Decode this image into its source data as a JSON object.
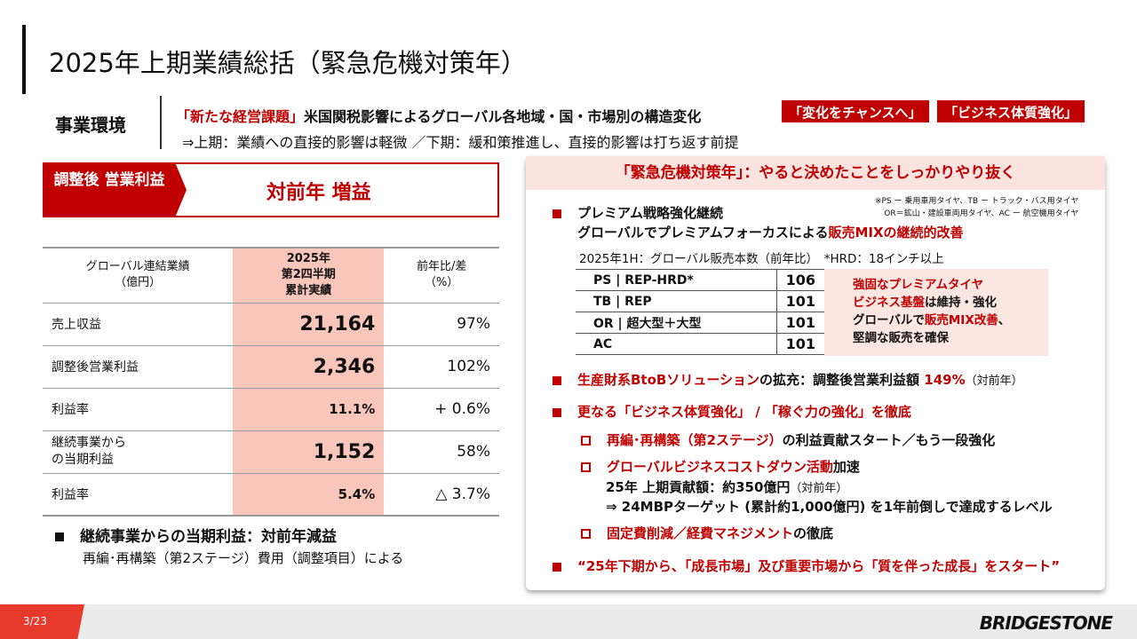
{
  "title": "2025年上期業績総括（緊急危機対策年）",
  "env": {
    "label": "事業環境",
    "line1_red": "「新たな経営課題」",
    "line1_black": "米国関税影響によるグローバル各地域・国・市場別の構造変化",
    "line2": "⇒上期：業績への直接的影響は軽微 ／下期：緩和策推進し、直接的影響は打ち返す前提",
    "tags": [
      "「変化をチャンスへ」",
      "「ビジネス体質強化」"
    ]
  },
  "summary": {
    "label": "調整後 営業利益",
    "result": "対前年 増益"
  },
  "fin_table": {
    "headers": [
      "グローバル連結業績\n（億円）",
      "2025年\n第2四半期\n累計実績",
      "前年比/差\n（%）"
    ],
    "rows": [
      [
        "売上収益",
        "21,164",
        "97%"
      ],
      [
        "調整後営業利益",
        "2,346",
        "102%"
      ],
      [
        "利益率",
        "11.1%",
        "+ 0.6%"
      ],
      [
        "継続事業から\nの当期利益",
        "1,152",
        "58%"
      ],
      [
        "利益率",
        "5.4%",
        "△ 3.7%"
      ]
    ]
  },
  "notes": {
    "n1": "継続事業からの当期利益：対前年減益",
    "n2": "再編･再構築（第2ステージ）費用（調整項目）による"
  },
  "right": {
    "header": "「緊急危機対策年」：やると決めたことをしっかりやり抜く",
    "footnote1": "※PS ー 乗用車用タイヤ、TB ー トラック・バス用タイヤ",
    "footnote2": "OR＝鉱山・建設車両用タイヤ、AC ー 航空機用タイヤ",
    "b1_l1": "プレミアム戦略強化継続",
    "b1_l2_black": "グローバルでプレミアムフォーカスによる",
    "b1_l2_red": "販売MIXの継続的改善",
    "sales_caption": "2025年1H：グローバル販売本数（前年比）　*HRD：18インチ以上",
    "sales": [
      [
        "PS | REP-HRD*",
        "106"
      ],
      [
        "TB | REP",
        "101"
      ],
      [
        "OR | 超大型＋大型",
        "101"
      ],
      [
        "AC",
        "101"
      ]
    ],
    "sales_note": {
      "a_red": "強固なプレミアムタイヤ\nビジネス基盤",
      "a_black": "は維持・強化",
      "b_black1": "グローバルで",
      "b_red": "販売MIX改善",
      "b_black2": "、\n堅調な販売を確保"
    },
    "b2_red": "生産財系BtoBソリューション",
    "b2_black": "の拡充：調整後営業利益額 ",
    "b2_pct": "149%",
    "b2_small": "（対前年）",
    "b3": "更なる「ビジネス体質強化」 / 「稼ぐ力の強化」を徹底",
    "s1_red": "再編･再構築（第2ステージ）",
    "s1_black": "の利益貢献スタート／もう一段強化",
    "s2_red": "グローバルビジネスコストダウン活動",
    "s2_black": "加速",
    "s2_l2": "25年 上期貢献額：約350億円",
    "s2_l2_small": "（対前年）",
    "s2_l3": "⇒ 24MBPターゲット (累計約1,000億円) を1年前倒しで達成するレベル",
    "s3_red": "固定費削減／経費マネジメント",
    "s3_black": "の徹底",
    "b4": "“25年下期から、「成長市場」及び重要市場から「質を伴った成長」をスタート”"
  },
  "footer": {
    "page": "3/23",
    "logo": "BRIDGESTONE"
  },
  "colors": {
    "accent": "#c00000",
    "highlight": "#f9c6bc",
    "panel_header": "#fbe3df"
  }
}
